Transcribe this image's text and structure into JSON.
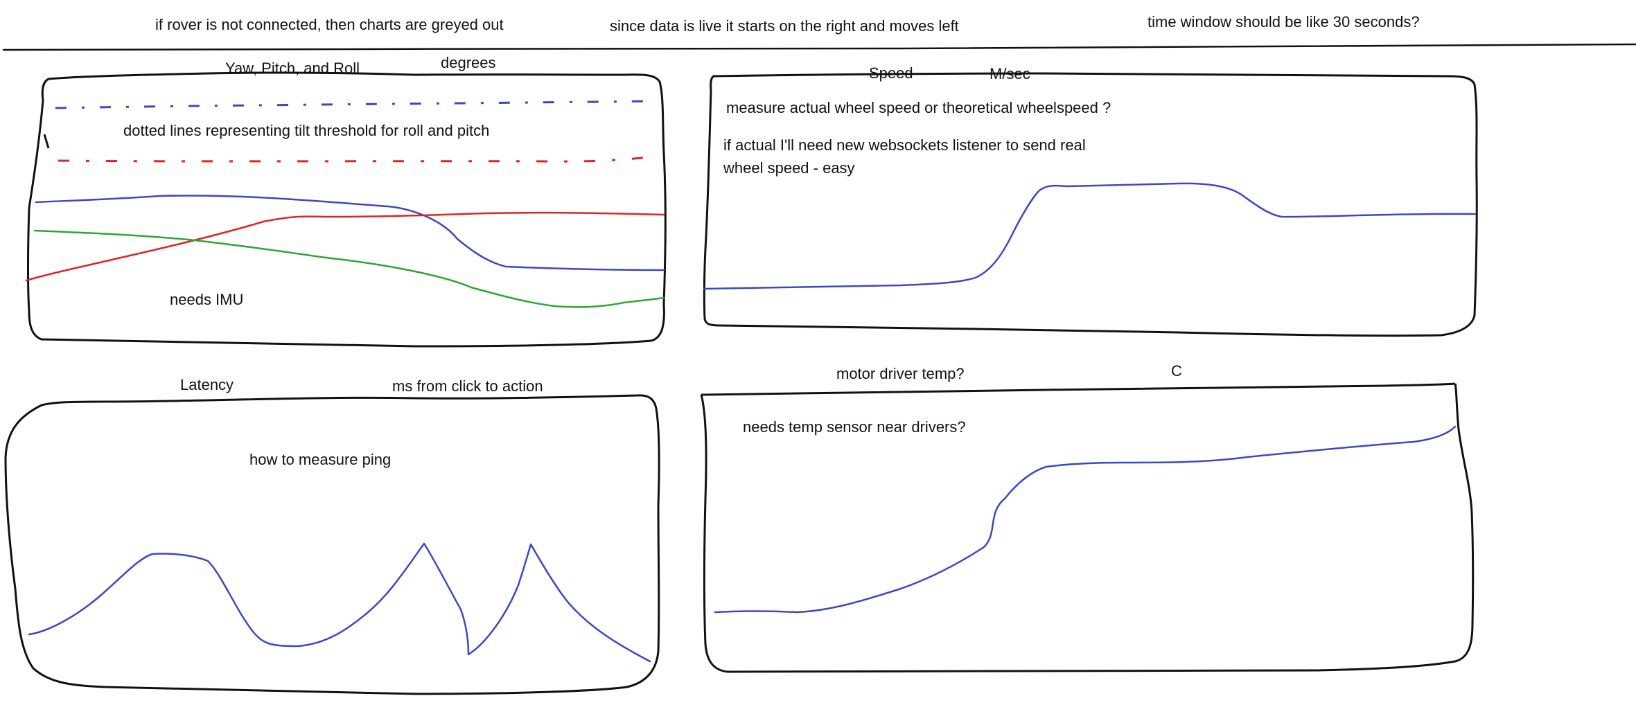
{
  "notes": {
    "greyed_out": "if rover is not connected, then charts are greyed out",
    "live_direction": "since data is live it starts on the right and moves left",
    "time_window": "time window should be like 30 seconds?"
  },
  "panels": {
    "orientation": {
      "title": "Yaw, Pitch, and Roll",
      "unit": "degrees",
      "note_threshold": "dotted lines representing tilt threshold for roll and pitch",
      "note_sensor": "needs IMU"
    },
    "speed": {
      "title": "Speed",
      "unit": "M/sec",
      "note_question": "measure actual wheel speed or theoretical wheelspeed ?",
      "note_actual_line1": "if actual I'll need new websockets listener to send real",
      "note_actual_line2": "wheel speed - easy"
    },
    "latency": {
      "title": "Latency",
      "unit": "ms from click to action",
      "note": "how to measure ping"
    },
    "temperature": {
      "title": "motor driver temp?",
      "unit": "C",
      "note": "needs temp sensor near drivers?"
    }
  },
  "colors": {
    "ink": "#111111",
    "blue": "#3b47c9",
    "red": "#e02424",
    "green": "#2aa836"
  }
}
